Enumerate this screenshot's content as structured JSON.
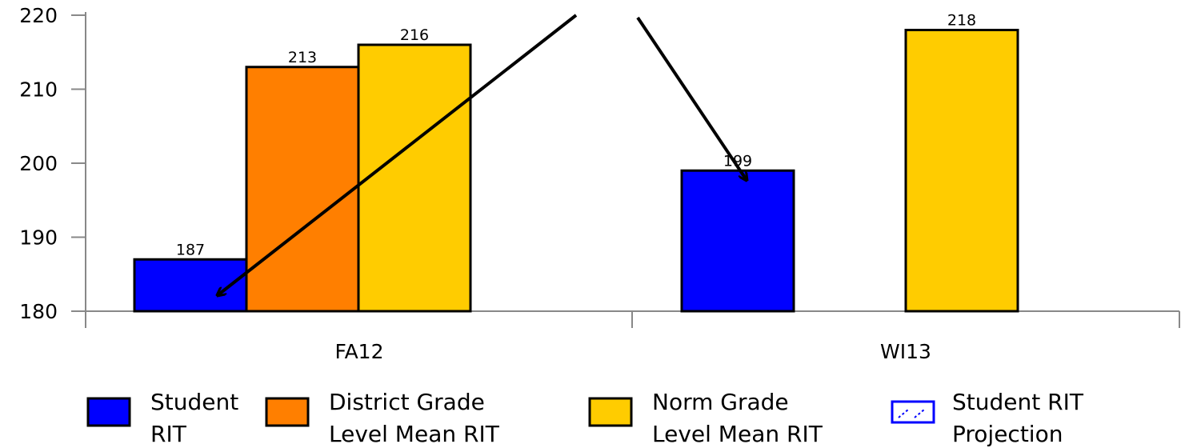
{
  "chart_data": {
    "type": "bar",
    "categories": [
      "FA12",
      "WI13"
    ],
    "ylim": [
      180,
      220
    ],
    "yticks": [
      180,
      190,
      200,
      210,
      220
    ],
    "grid": false,
    "legend_position": "bottom",
    "series": [
      {
        "name": "Student RIT",
        "color": "#0000ff",
        "values": [
          187,
          199
        ]
      },
      {
        "name": "District Grade Level Mean RIT",
        "color": "#ff7f00",
        "values": [
          213,
          null
        ]
      },
      {
        "name": "Norm Grade Level Mean RIT",
        "color": "#ffcc00",
        "values": [
          216,
          218
        ]
      },
      {
        "name": "Student RIT Projection",
        "color": "#0000ff",
        "style": "dashed-outline",
        "values": [
          null,
          null
        ]
      }
    ],
    "legend": [
      {
        "line1": "Student",
        "line2": "RIT",
        "style": "solid",
        "color": "#0000ff"
      },
      {
        "line1": "District Grade",
        "line2": "Level Mean RIT",
        "style": "solid",
        "color": "#ff7f00"
      },
      {
        "line1": "Norm Grade",
        "line2": "Level Mean RIT",
        "style": "solid",
        "color": "#ffcc00"
      },
      {
        "line1": "Student RIT",
        "line2": "Projection",
        "style": "dashed",
        "color": "#0000ff"
      }
    ],
    "annotations": [
      {
        "type": "arrow",
        "points_to": "FA12 Student RIT"
      },
      {
        "type": "arrow",
        "points_to": "WI13 Student RIT"
      }
    ]
  }
}
